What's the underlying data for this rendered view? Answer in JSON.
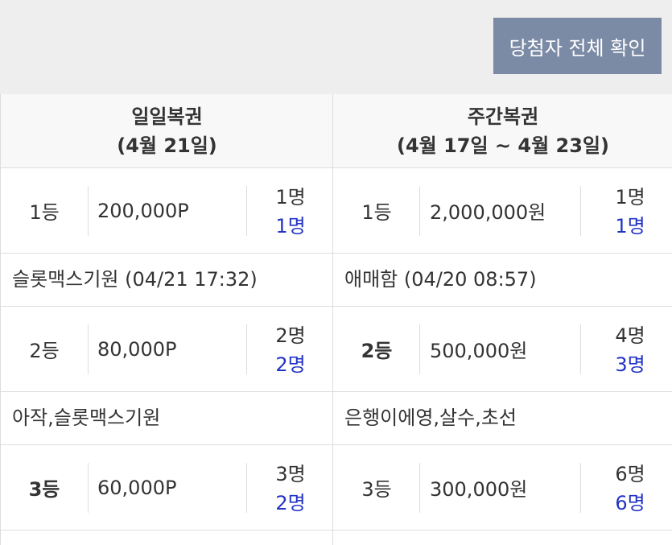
{
  "header": {
    "button": "당첨자 전체 확인"
  },
  "columns": [
    {
      "title": "일일복권",
      "period": "(4월 21일)",
      "prizes": [
        {
          "rank": "1등",
          "amount": "200,000P",
          "total": "1명",
          "won": "1명",
          "winners": "슬롯맥스기원 (04/21 17:32)"
        },
        {
          "rank": "2등",
          "amount": "80,000P",
          "total": "2명",
          "won": "2명",
          "winners": "아작,슬롯맥스기원"
        },
        {
          "rank": "3등",
          "amount": "60,000P",
          "total": "3명",
          "won": "2명"
        }
      ]
    },
    {
      "title": "주간복권",
      "period": "(4월 17일 ~ 4월 23일)",
      "prizes": [
        {
          "rank": "1등",
          "amount": "2,000,000원",
          "total": "1명",
          "won": "1명",
          "winners": "애매함 (04/20 08:57)"
        },
        {
          "rank": "2등",
          "amount": "500,000원",
          "total": "4명",
          "won": "3명",
          "winners": "은행이에영,살수,초선"
        },
        {
          "rank": "3등",
          "amount": "300,000원",
          "total": "6명",
          "won": "6명"
        }
      ]
    }
  ]
}
